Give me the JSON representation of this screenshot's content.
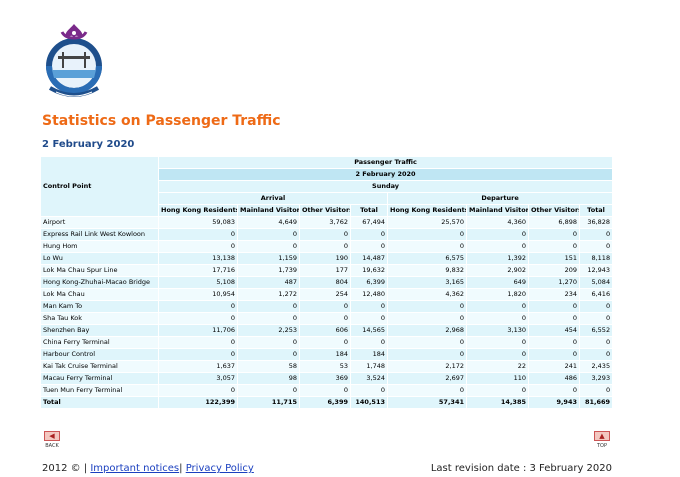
{
  "page": {
    "title": "Statistics on Passenger Traffic",
    "date": "2 February 2020"
  },
  "table": {
    "title": "Passenger Traffic",
    "date": "2 February 2020",
    "day": "Sunday",
    "control_point_label": "Control Point",
    "arrival_label": "Arrival",
    "departure_label": "Departure",
    "columns": [
      "Hong Kong Residents",
      "Mainland Visitors",
      "Other Visitors",
      "Total",
      "Hong Kong Residents",
      "Mainland Visitors",
      "Other Visitors",
      "Total"
    ],
    "rows": [
      {
        "name": "Airport",
        "values": [
          "59,083",
          "4,649",
          "3,762",
          "67,494",
          "25,570",
          "4,360",
          "6,898",
          "36,828"
        ]
      },
      {
        "name": "Express Rail Link West Kowloon",
        "values": [
          "0",
          "0",
          "0",
          "0",
          "0",
          "0",
          "0",
          "0"
        ]
      },
      {
        "name": "Hung Hom",
        "values": [
          "0",
          "0",
          "0",
          "0",
          "0",
          "0",
          "0",
          "0"
        ]
      },
      {
        "name": "Lo Wu",
        "values": [
          "13,138",
          "1,159",
          "190",
          "14,487",
          "6,575",
          "1,392",
          "151",
          "8,118"
        ]
      },
      {
        "name": "Lok Ma Chau Spur Line",
        "values": [
          "17,716",
          "1,739",
          "177",
          "19,632",
          "9,832",
          "2,902",
          "209",
          "12,943"
        ]
      },
      {
        "name": "Hong Kong-Zhuhai-Macao Bridge",
        "values": [
          "5,108",
          "487",
          "804",
          "6,399",
          "3,165",
          "649",
          "1,270",
          "5,084"
        ]
      },
      {
        "name": "Lok Ma Chau",
        "values": [
          "10,954",
          "1,272",
          "254",
          "12,480",
          "4,362",
          "1,820",
          "234",
          "6,416"
        ]
      },
      {
        "name": "Man Kam To",
        "values": [
          "0",
          "0",
          "0",
          "0",
          "0",
          "0",
          "0",
          "0"
        ]
      },
      {
        "name": "Sha Tau Kok",
        "values": [
          "0",
          "0",
          "0",
          "0",
          "0",
          "0",
          "0",
          "0"
        ]
      },
      {
        "name": "Shenzhen Bay",
        "values": [
          "11,706",
          "2,253",
          "606",
          "14,565",
          "2,968",
          "3,130",
          "454",
          "6,552"
        ]
      },
      {
        "name": "China Ferry Terminal",
        "values": [
          "0",
          "0",
          "0",
          "0",
          "0",
          "0",
          "0",
          "0"
        ]
      },
      {
        "name": "Harbour Control",
        "values": [
          "0",
          "0",
          "184",
          "184",
          "0",
          "0",
          "0",
          "0"
        ]
      },
      {
        "name": "Kai Tak Cruise Terminal",
        "values": [
          "1,637",
          "58",
          "53",
          "1,748",
          "2,172",
          "22",
          "241",
          "2,435"
        ]
      },
      {
        "name": "Macau Ferry Terminal",
        "values": [
          "3,057",
          "98",
          "369",
          "3,524",
          "2,697",
          "110",
          "486",
          "3,293"
        ]
      },
      {
        "name": "Tuen Mun Ferry Terminal",
        "values": [
          "0",
          "0",
          "0",
          "0",
          "0",
          "0",
          "0",
          "0"
        ]
      }
    ],
    "total": {
      "name": "Total",
      "values": [
        "122,399",
        "11,715",
        "6,399",
        "140,513",
        "57,341",
        "14,385",
        "9,943",
        "81,669"
      ]
    }
  },
  "nav": {
    "back_label": "BACK",
    "top_label": "TOP"
  },
  "footer": {
    "copyright": "2012 © | ",
    "important_notices": "Important notices",
    "separator": "| ",
    "privacy_policy": "Privacy Policy",
    "last_revision": "Last revision date : 3 February 2020"
  },
  "colors": {
    "title_orange": "#ee6a16",
    "date_blue": "#1f4a8a",
    "table_light": "#dff5fb",
    "table_band": "#bfe6f3",
    "link_blue": "#1a3fbf"
  }
}
